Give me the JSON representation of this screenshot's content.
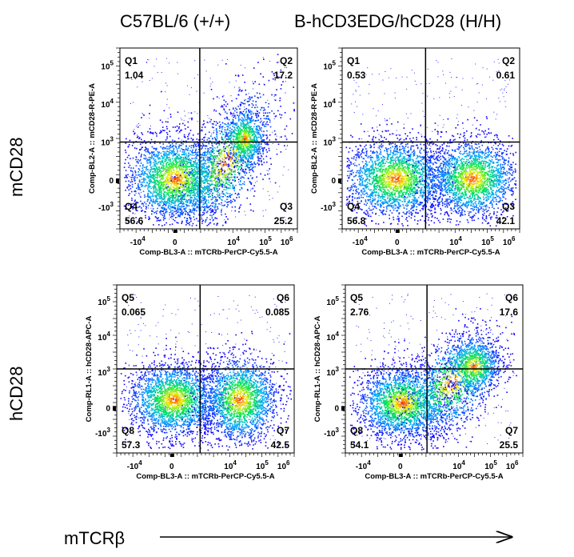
{
  "column_titles": [
    "C57BL/6 (+/+)",
    "B-hCD3EDG/hCD28 (H/H)"
  ],
  "row_labels": [
    "mCD28",
    "hCD28"
  ],
  "footer_axis_label": "mTCRβ",
  "colors": {
    "density_low": "#0000ff",
    "density_mid": "#00ff66",
    "density_high": "#ff2200",
    "gate_line": "#000000"
  },
  "chart_data": [
    {
      "type": "scatter",
      "subtype": "flow-cytometry-density",
      "xlabel": "Comp-BL3-A :: mTCRb-PerCP-Cy5.5-A",
      "ylabel": "Comp-BL2-A :: mCD28-R-PE-A",
      "x_ticks": [
        "-10^4",
        "0",
        "10^4",
        "10^5",
        "10^6"
      ],
      "y_ticks": [
        "-10^3",
        "0",
        "10^3",
        "10^4",
        "10^5"
      ],
      "gate": {
        "x": 2500,
        "y": 1200
      },
      "quadrants": [
        {
          "name": "Q1",
          "value": "1.04",
          "position": "top-left"
        },
        {
          "name": "Q2",
          "value": "17.2",
          "position": "top-right"
        },
        {
          "name": "Q3",
          "value": "25.2",
          "position": "bottom-right"
        },
        {
          "name": "Q4",
          "value": "56.6",
          "position": "bottom-left"
        }
      ]
    },
    {
      "type": "scatter",
      "subtype": "flow-cytometry-density",
      "xlabel": "Comp-BL3-A :: mTCRb-PerCP-Cy5.5-A",
      "ylabel": "Comp-BL2-A :: mCD28-R-PE-A",
      "x_ticks": [
        "-10^4",
        "0",
        "10^4",
        "10^5",
        "10^6"
      ],
      "y_ticks": [
        "-10^3",
        "0",
        "10^3",
        "10^4",
        "10^5"
      ],
      "gate": {
        "x": 2500,
        "y": 1200
      },
      "quadrants": [
        {
          "name": "Q1",
          "value": "0.53",
          "position": "top-left"
        },
        {
          "name": "Q2",
          "value": "0.61",
          "position": "top-right"
        },
        {
          "name": "Q3",
          "value": "42.1",
          "position": "bottom-right"
        },
        {
          "name": "Q4",
          "value": "56.8",
          "position": "bottom-left"
        }
      ]
    },
    {
      "type": "scatter",
      "subtype": "flow-cytometry-density",
      "xlabel": "Comp-BL3-A :: mTCRb-PerCP-Cy5.5-A",
      "ylabel": "Comp-RL1-A :: hCD28-APC-A",
      "x_ticks": [
        "-10^4",
        "0",
        "10^4",
        "10^5",
        "10^6"
      ],
      "y_ticks": [
        "-10^3",
        "0",
        "10^3",
        "10^4",
        "10^5"
      ],
      "gate": {
        "x": 2500,
        "y": 1200
      },
      "quadrants": [
        {
          "name": "Q5",
          "value": "0.065",
          "position": "top-left"
        },
        {
          "name": "Q6",
          "value": "0.085",
          "position": "top-right"
        },
        {
          "name": "Q7",
          "value": "42.5",
          "position": "bottom-right"
        },
        {
          "name": "Q8",
          "value": "57.3",
          "position": "bottom-left"
        }
      ]
    },
    {
      "type": "scatter",
      "subtype": "flow-cytometry-density",
      "xlabel": "Comp-BL3-A :: mTCRb-PerCP-Cy5.5-A",
      "ylabel": "Comp-RL1-A :: hCD28-APC-A",
      "x_ticks": [
        "-10^4",
        "0",
        "10^4",
        "10^5",
        "10^6"
      ],
      "y_ticks": [
        "-10^3",
        "0",
        "10^3",
        "10^4",
        "10^5"
      ],
      "gate": {
        "x": 2500,
        "y": 1200
      },
      "quadrants": [
        {
          "name": "Q5",
          "value": "2.76",
          "position": "top-left"
        },
        {
          "name": "Q6",
          "value": "17.6",
          "position": "top-right"
        },
        {
          "name": "Q7",
          "value": "25.5",
          "position": "bottom-right"
        },
        {
          "name": "Q8",
          "value": "54.1",
          "position": "bottom-left"
        }
      ]
    }
  ]
}
